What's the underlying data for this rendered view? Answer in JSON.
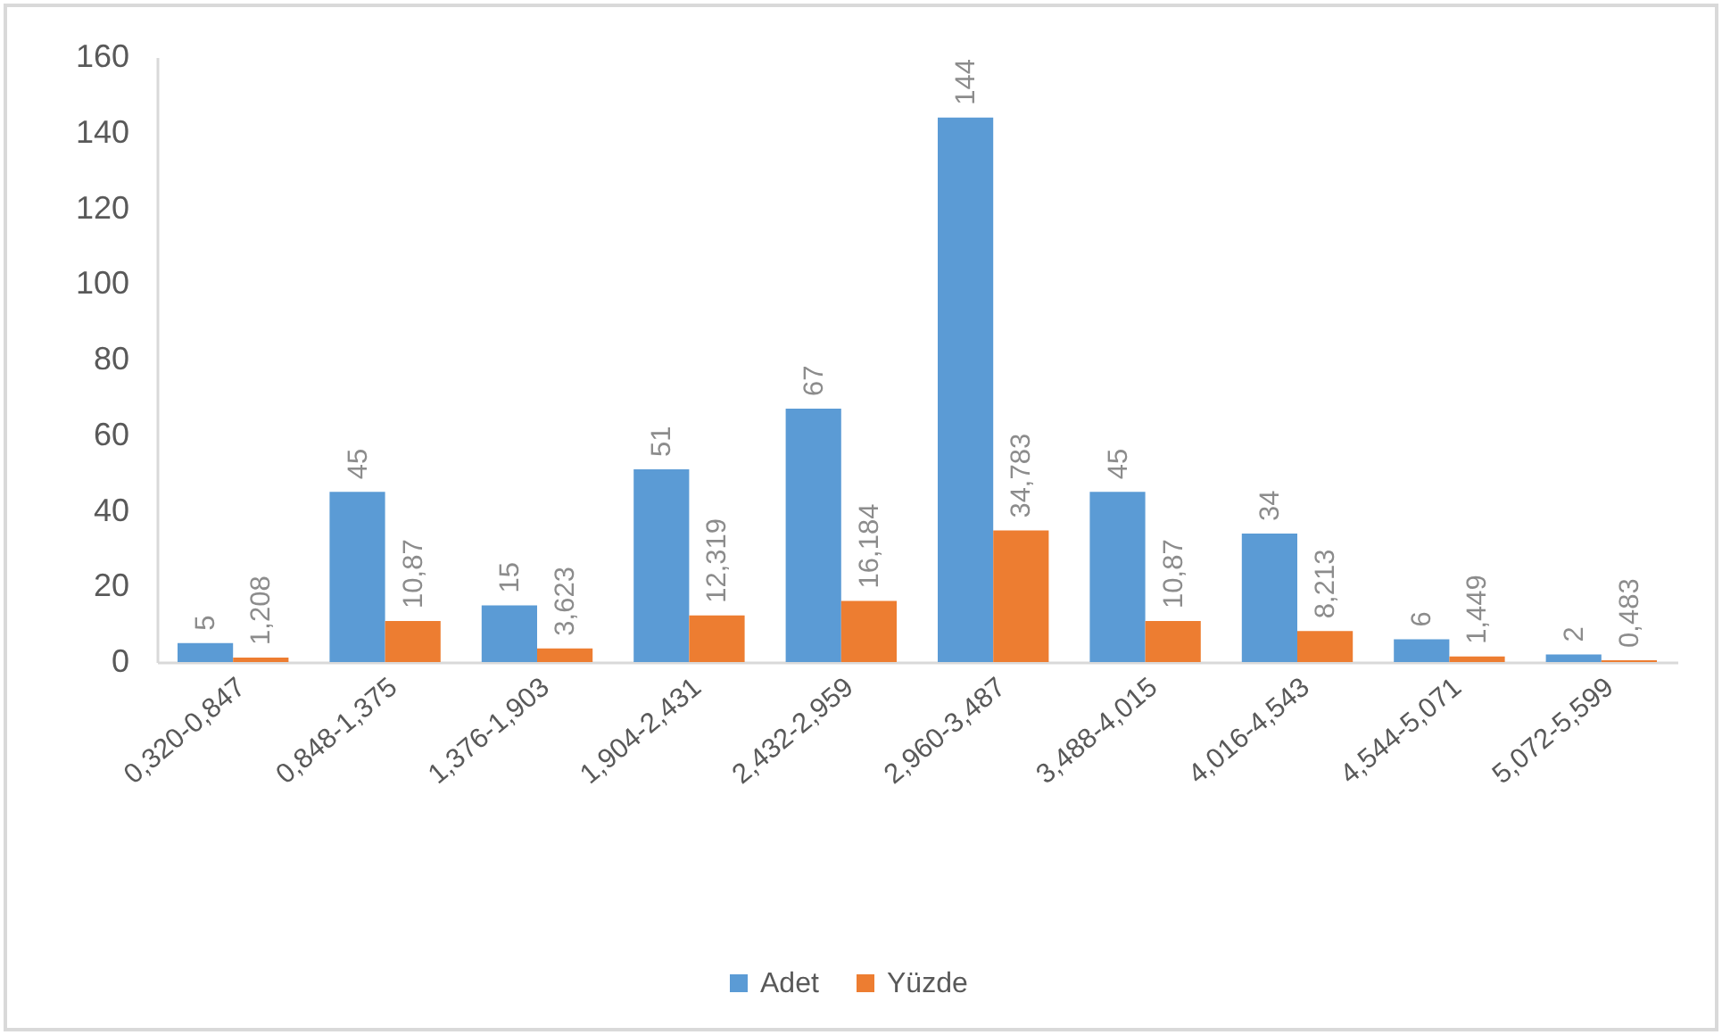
{
  "chart_data": {
    "type": "bar",
    "categories": [
      "0,320-0,847",
      "0,848-1,375",
      "1,376-1,903",
      "1,904-2,431",
      "2,432-2,959",
      "2,960-3,487",
      "3,488-4,015",
      "4,016-4,543",
      "4,544-5,071",
      "5,072-5,599"
    ],
    "series": [
      {
        "name": "Adet",
        "color": "#5b9bd5",
        "values": [
          5,
          45,
          15,
          51,
          67,
          144,
          45,
          34,
          6,
          2
        ],
        "value_labels": [
          "5",
          "45",
          "15",
          "51",
          "67",
          "144",
          "45",
          "34",
          "6",
          "2"
        ]
      },
      {
        "name": "Yüzde",
        "color": "#ed7d31",
        "values": [
          1.208,
          10.87,
          3.623,
          12.319,
          16.184,
          34.783,
          10.87,
          8.213,
          1.449,
          0.483
        ],
        "value_labels": [
          "1,208",
          "10,87",
          "3,623",
          "12,319",
          "16,184",
          "34,783",
          "10,87",
          "8,213",
          "1,449",
          "0,483"
        ]
      }
    ],
    "ylim": [
      0,
      160
    ],
    "yticks": [
      0,
      20,
      40,
      60,
      80,
      100,
      120,
      140,
      160
    ],
    "legend": "bottom"
  }
}
